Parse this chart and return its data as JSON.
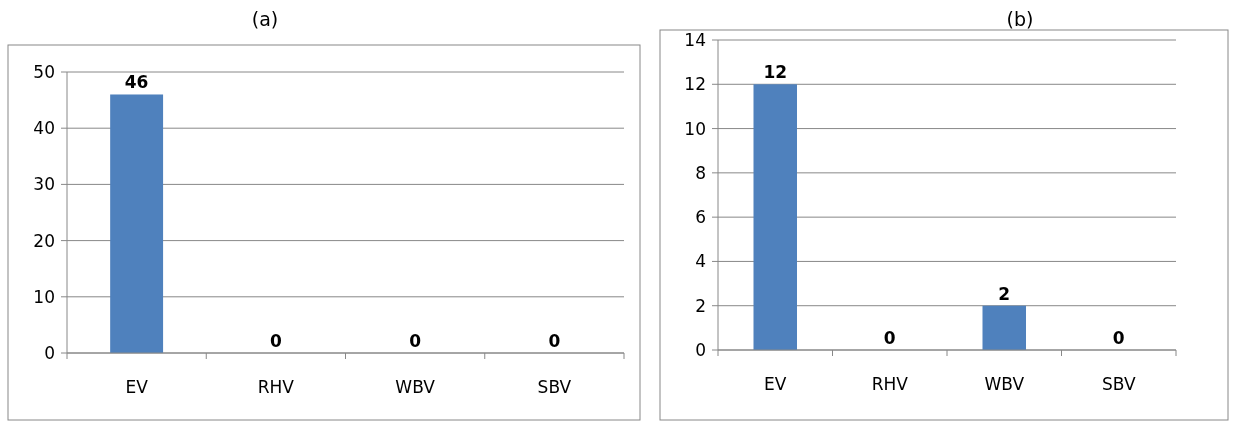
{
  "chart_data": [
    {
      "type": "bar",
      "title": "(a)",
      "categories": [
        "EV",
        "RHV",
        "WBV",
        "SBV"
      ],
      "values": [
        46,
        0,
        0,
        0
      ],
      "color": "#4f81bd",
      "ylim": [
        0,
        50
      ],
      "yticks": [
        0,
        10,
        20,
        30,
        40,
        50
      ],
      "grid": "y",
      "data_labels": true
    },
    {
      "type": "bar",
      "title": "(b)",
      "categories": [
        "EV",
        "RHV",
        "WBV",
        "SBV"
      ],
      "values": [
        12,
        0,
        2,
        0
      ],
      "color": "#4f81bd",
      "ylim": [
        0,
        14
      ],
      "yticks": [
        0,
        2,
        4,
        6,
        8,
        10,
        12,
        14
      ],
      "grid": "y",
      "data_labels": true
    }
  ]
}
